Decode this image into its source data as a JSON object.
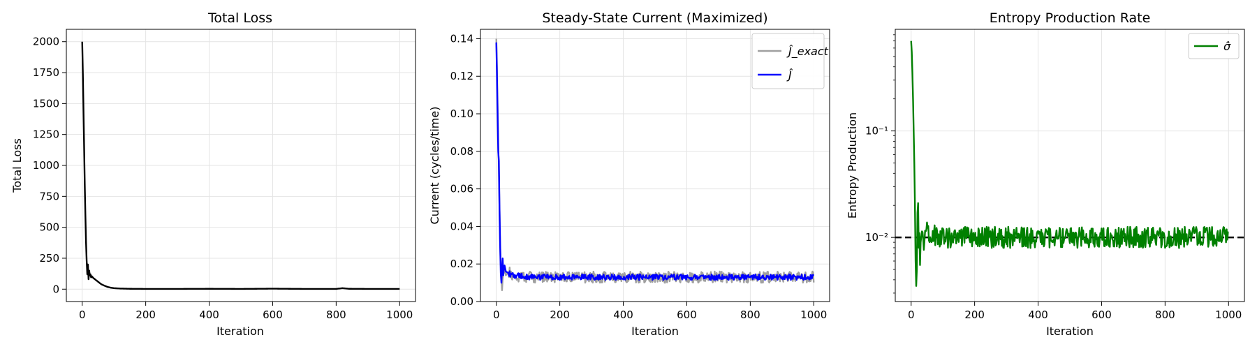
{
  "chart_data": [
    {
      "type": "line",
      "title": "Total Loss",
      "xlabel": "Iteration",
      "ylabel": "Total Loss",
      "xlim": [
        -50,
        1050
      ],
      "ylim": [
        -100,
        2100
      ],
      "xticks": [
        0,
        200,
        400,
        600,
        800,
        1000
      ],
      "yticks": [
        0,
        250,
        500,
        750,
        1000,
        1250,
        1500,
        1750,
        2000
      ],
      "ytick_labels": [
        "0",
        "250",
        "500",
        "750",
        "1000",
        "1250",
        "1500",
        "1750",
        "2000"
      ],
      "yscale": "linear",
      "grid": true,
      "legend": null,
      "series": [
        {
          "color": "#000000",
          "x": [
            0,
            2,
            4,
            6,
            8,
            10,
            12,
            14,
            16,
            18,
            20,
            22,
            24,
            26,
            28,
            30,
            35,
            40,
            50,
            60,
            70,
            80,
            90,
            100,
            120,
            150,
            200,
            300,
            400,
            500,
            600,
            700,
            800,
            820,
            840,
            900,
            1000
          ],
          "y": [
            2000,
            1750,
            1450,
            1150,
            850,
            600,
            380,
            230,
            120,
            200,
            80,
            150,
            110,
            120,
            95,
            105,
            90,
            80,
            60,
            40,
            28,
            18,
            12,
            8,
            5,
            3,
            2,
            2,
            3,
            2,
            4,
            2,
            2,
            8,
            3,
            2,
            2
          ]
        }
      ]
    },
    {
      "type": "line",
      "title": "Steady-State Current (Maximized)",
      "xlabel": "Iteration",
      "ylabel": "Current (cycles/time)",
      "xlim": [
        -50,
        1050
      ],
      "ylim": [
        0,
        0.145
      ],
      "xticks": [
        0,
        200,
        400,
        600,
        800,
        1000
      ],
      "yticks": [
        0,
        0.02,
        0.04,
        0.06,
        0.08,
        0.1,
        0.12,
        0.14
      ],
      "ytick_labels": [
        "0.00",
        "0.02",
        "0.04",
        "0.06",
        "0.08",
        "0.10",
        "0.12",
        "0.14"
      ],
      "yscale": "linear",
      "grid": true,
      "legend": "top-right",
      "series": [
        {
          "name": "Ĵ_exact",
          "color": "#a0a0a0",
          "x": [
            0,
            2,
            4,
            6,
            8,
            10,
            12,
            14,
            16,
            18,
            20,
            25,
            30,
            40,
            50,
            100,
            1000
          ],
          "y": [
            0.14,
            0.125,
            0.105,
            0.085,
            0.07,
            0.05,
            0.03,
            0.02,
            0.012,
            0.006,
            0.012,
            0.018,
            0.014,
            0.016,
            0.013,
            0.013,
            0.013
          ],
          "noise_amplitude": 0.003
        },
        {
          "name": "Ĵ",
          "color": "#0000ff",
          "x": [
            0,
            2,
            4,
            6,
            8,
            10,
            12,
            14,
            16,
            18,
            20,
            22,
            25,
            30,
            40,
            50,
            100,
            1000
          ],
          "y": [
            0.138,
            0.12,
            0.1,
            0.08,
            0.075,
            0.05,
            0.03,
            0.015,
            0.01,
            0.018,
            0.023,
            0.014,
            0.02,
            0.016,
            0.015,
            0.014,
            0.013,
            0.013
          ],
          "noise_amplitude": 0.0015
        }
      ]
    },
    {
      "type": "line",
      "title": "Entropy Production Rate",
      "xlabel": "Iteration",
      "ylabel": "Entropy Production",
      "xlim": [
        -50,
        1050
      ],
      "ylim": [
        0.0025,
        0.9
      ],
      "xticks": [
        0,
        200,
        400,
        600,
        800,
        1000
      ],
      "yticks": [
        0.01,
        0.1
      ],
      "ytick_labels": [
        "10⁻²",
        "10⁻¹"
      ],
      "yscale": "log",
      "grid": true,
      "legend": "top-right",
      "reference_line": {
        "y": 0.01,
        "style": "dashed",
        "color": "#000000"
      },
      "series": [
        {
          "name": "σ̂",
          "color": "#008000",
          "x": [
            0,
            2,
            4,
            6,
            8,
            10,
            12,
            14,
            16,
            18,
            20,
            22,
            24,
            26,
            28,
            30,
            35,
            40,
            50,
            100,
            1000
          ],
          "y": [
            0.7,
            0.55,
            0.35,
            0.2,
            0.1,
            0.05,
            0.02,
            0.006,
            0.0035,
            0.005,
            0.017,
            0.021,
            0.008,
            0.011,
            0.0055,
            0.009,
            0.012,
            0.008,
            0.011,
            0.01,
            0.01
          ],
          "noise_amplitude_log": 0.1
        }
      ]
    }
  ]
}
